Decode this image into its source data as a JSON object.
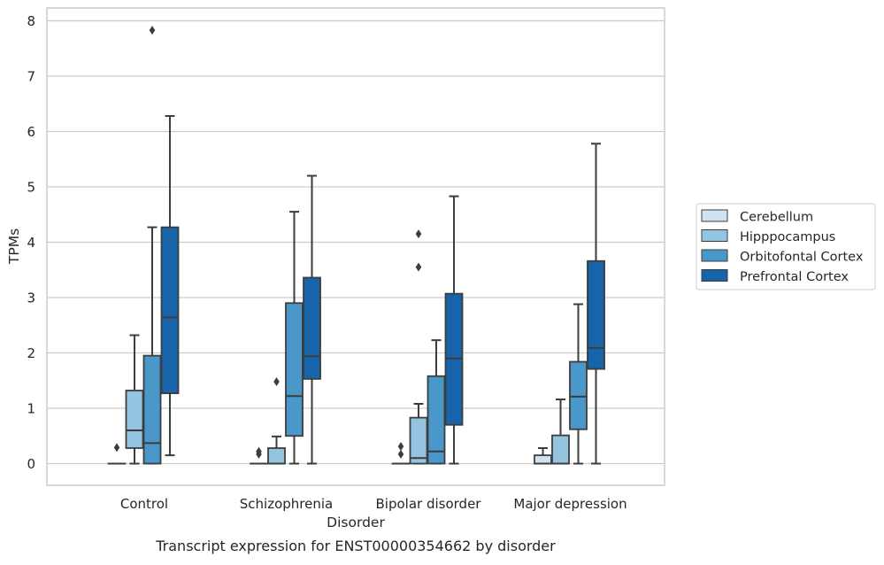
{
  "chart_data": {
    "type": "boxplot",
    "title": "",
    "caption": "Transcript expression for ENST00000354662 by disorder",
    "xlabel": "Disorder",
    "ylabel": "TPMs",
    "ylim": [
      -0.4,
      8.25
    ],
    "yticks": [
      "0",
      "1",
      "2",
      "3",
      "4",
      "5",
      "6",
      "7",
      "8"
    ],
    "grid": true,
    "legend_position": "right",
    "categories": [
      "Control",
      "Schizophrenia",
      "Bipolar disorder",
      "Major depression"
    ],
    "series": [
      {
        "name": "Cerebellum",
        "color": "#d0e1f2",
        "boxes": [
          {
            "min": 0,
            "q1": 0,
            "median": 0,
            "q3": 0,
            "max": 0,
            "outliers": [
              0.29
            ]
          },
          {
            "min": 0,
            "q1": 0,
            "median": 0,
            "q3": 0,
            "max": 0,
            "outliers": [
              0.17,
              0.22
            ]
          },
          {
            "min": 0,
            "q1": 0,
            "median": 0,
            "q3": 0,
            "max": 0,
            "outliers": [
              0.17,
              0.31
            ]
          },
          {
            "min": 0,
            "q1": 0,
            "median": 0,
            "q3": 0.15,
            "max": 0.28,
            "outliers": []
          }
        ]
      },
      {
        "name": "Hipppocampus",
        "color": "#94c4df",
        "boxes": [
          {
            "min": 0,
            "q1": 0.28,
            "median": 0.6,
            "q3": 1.32,
            "max": 2.32,
            "outliers": []
          },
          {
            "min": 0,
            "q1": 0,
            "median": 0,
            "q3": 0.28,
            "max": 0.49,
            "outliers": [
              1.48
            ]
          },
          {
            "min": 0,
            "q1": 0,
            "median": 0.1,
            "q3": 0.83,
            "max": 1.08,
            "outliers": [
              3.55,
              4.15
            ]
          },
          {
            "min": 0,
            "q1": 0,
            "median": 0,
            "q3": 0.51,
            "max": 1.16,
            "outliers": []
          }
        ]
      },
      {
        "name": "Orbitofontal Cortex",
        "color": "#4a98c9",
        "boxes": [
          {
            "min": 0,
            "q1": 0,
            "median": 0.37,
            "q3": 1.95,
            "max": 4.27,
            "outliers": [
              7.83
            ]
          },
          {
            "min": 0,
            "q1": 0.5,
            "median": 1.22,
            "q3": 2.9,
            "max": 4.55,
            "outliers": []
          },
          {
            "min": 0,
            "q1": 0,
            "median": 0.22,
            "q3": 1.58,
            "max": 2.23,
            "outliers": []
          },
          {
            "min": 0,
            "q1": 0.62,
            "median": 1.21,
            "q3": 1.84,
            "max": 2.88,
            "outliers": []
          }
        ]
      },
      {
        "name": "Prefrontal Cortex",
        "color": "#1764ab",
        "boxes": [
          {
            "min": 0.15,
            "q1": 1.27,
            "median": 2.64,
            "q3": 4.27,
            "max": 6.28,
            "outliers": []
          },
          {
            "min": 0,
            "q1": 1.53,
            "median": 1.94,
            "q3": 3.36,
            "max": 5.2,
            "outliers": []
          },
          {
            "min": 0,
            "q1": 0.7,
            "median": 1.9,
            "q3": 3.07,
            "max": 4.83,
            "outliers": []
          },
          {
            "min": 0,
            "q1": 1.71,
            "median": 2.09,
            "q3": 3.66,
            "max": 5.78,
            "outliers": []
          }
        ]
      }
    ]
  }
}
